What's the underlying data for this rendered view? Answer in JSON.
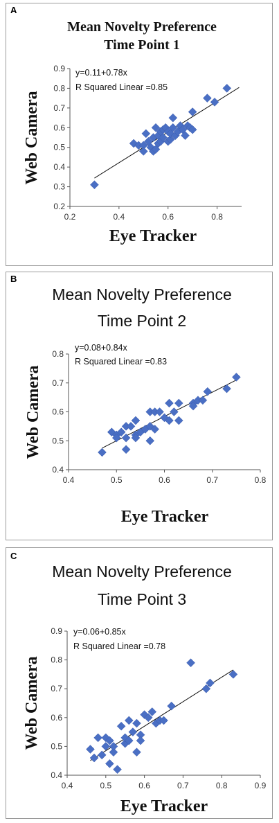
{
  "chart_data": [
    {
      "type": "scatter",
      "panel_label": "A",
      "title_lines": [
        "Mean Novelty Preference",
        "Time Point 1"
      ],
      "title_style": "serif",
      "equation": "y=0.11+0.78x",
      "r_squared": "R Squared Linear =0.85",
      "xlabel": "Eye Tracker",
      "ylabel": "Web Camera",
      "xlim": [
        0.2,
        0.9
      ],
      "ylim": [
        0.2,
        0.9
      ],
      "xticks": [
        "0.2",
        "0.4",
        "0.6",
        "0.8"
      ],
      "yticks": [
        "0.2",
        "0.3",
        "0.4",
        "0.5",
        "0.6",
        "0.7",
        "0.8",
        "0.9"
      ],
      "grid": false,
      "marker_color": "#4a6fc4",
      "fit": {
        "intercept": 0.11,
        "slope": 0.78,
        "x_range": [
          0.3,
          0.89
        ]
      },
      "points": [
        [
          0.3,
          0.31
        ],
        [
          0.46,
          0.52
        ],
        [
          0.48,
          0.51
        ],
        [
          0.5,
          0.51
        ],
        [
          0.5,
          0.48
        ],
        [
          0.51,
          0.57
        ],
        [
          0.52,
          0.53
        ],
        [
          0.53,
          0.5
        ],
        [
          0.54,
          0.48
        ],
        [
          0.54,
          0.55
        ],
        [
          0.55,
          0.6
        ],
        [
          0.55,
          0.49
        ],
        [
          0.56,
          0.52
        ],
        [
          0.56,
          0.56
        ],
        [
          0.57,
          0.58
        ],
        [
          0.57,
          0.53
        ],
        [
          0.58,
          0.59
        ],
        [
          0.58,
          0.55
        ],
        [
          0.59,
          0.6
        ],
        [
          0.6,
          0.58
        ],
        [
          0.6,
          0.53
        ],
        [
          0.61,
          0.54
        ],
        [
          0.61,
          0.57
        ],
        [
          0.62,
          0.65
        ],
        [
          0.62,
          0.6
        ],
        [
          0.63,
          0.56
        ],
        [
          0.64,
          0.58
        ],
        [
          0.65,
          0.61
        ],
        [
          0.66,
          0.59
        ],
        [
          0.67,
          0.56
        ],
        [
          0.68,
          0.61
        ],
        [
          0.69,
          0.6
        ],
        [
          0.7,
          0.68
        ],
        [
          0.7,
          0.59
        ],
        [
          0.76,
          0.75
        ],
        [
          0.79,
          0.73
        ],
        [
          0.84,
          0.8
        ]
      ]
    },
    {
      "type": "scatter",
      "panel_label": "B",
      "title_lines": [
        "Mean Novelty Preference",
        "Time Point 2"
      ],
      "title_style": "sans",
      "equation": "y=0.08+0.84x",
      "r_squared": "R Squared Linear =0.83",
      "xlabel": "Eye Tracker",
      "ylabel": "Web Camera",
      "xlim": [
        0.4,
        0.8
      ],
      "ylim": [
        0.4,
        0.8
      ],
      "xticks": [
        "0.4",
        "0.5",
        "0.6",
        "0.7",
        "0.8"
      ],
      "yticks": [
        "0.4",
        "0.5",
        "0.6",
        "0.7",
        "0.8"
      ],
      "grid": false,
      "marker_color": "#4a6fc4",
      "fit": {
        "intercept": 0.08,
        "slope": 0.84,
        "x_range": [
          0.47,
          0.75
        ]
      },
      "points": [
        [
          0.47,
          0.46
        ],
        [
          0.49,
          0.53
        ],
        [
          0.5,
          0.52
        ],
        [
          0.5,
          0.51
        ],
        [
          0.51,
          0.53
        ],
        [
          0.52,
          0.55
        ],
        [
          0.52,
          0.47
        ],
        [
          0.52,
          0.51
        ],
        [
          0.53,
          0.55
        ],
        [
          0.54,
          0.52
        ],
        [
          0.54,
          0.57
        ],
        [
          0.54,
          0.51
        ],
        [
          0.55,
          0.53
        ],
        [
          0.56,
          0.54
        ],
        [
          0.57,
          0.5
        ],
        [
          0.57,
          0.6
        ],
        [
          0.57,
          0.55
        ],
        [
          0.58,
          0.54
        ],
        [
          0.58,
          0.6
        ],
        [
          0.59,
          0.6
        ],
        [
          0.6,
          0.58
        ],
        [
          0.61,
          0.63
        ],
        [
          0.61,
          0.57
        ],
        [
          0.62,
          0.6
        ],
        [
          0.63,
          0.63
        ],
        [
          0.63,
          0.57
        ],
        [
          0.66,
          0.63
        ],
        [
          0.66,
          0.62
        ],
        [
          0.67,
          0.64
        ],
        [
          0.68,
          0.64
        ],
        [
          0.69,
          0.67
        ],
        [
          0.73,
          0.68
        ],
        [
          0.75,
          0.72
        ]
      ]
    },
    {
      "type": "scatter",
      "panel_label": "C",
      "title_lines": [
        "Mean Novelty Preference",
        "Time Point 3"
      ],
      "title_style": "sans",
      "equation": "y=0.06+0.85x",
      "r_squared": "R Squared Linear =0.78",
      "xlabel": "Eye Tracker",
      "ylabel": "Web Camera",
      "xlim": [
        0.4,
        0.9
      ],
      "ylim": [
        0.4,
        0.9
      ],
      "xticks": [
        "0.4",
        "0.5",
        "0.6",
        "0.7",
        "0.8",
        "0.9"
      ],
      "yticks": [
        "0.4",
        "0.5",
        "0.6",
        "0.7",
        "0.8",
        "0.9"
      ],
      "grid": false,
      "marker_color": "#4a6fc4",
      "fit": {
        "intercept": 0.06,
        "slope": 0.85,
        "x_range": [
          0.46,
          0.83
        ]
      },
      "points": [
        [
          0.46,
          0.49
        ],
        [
          0.47,
          0.46
        ],
        [
          0.48,
          0.53
        ],
        [
          0.49,
          0.47
        ],
        [
          0.5,
          0.5
        ],
        [
          0.5,
          0.53
        ],
        [
          0.51,
          0.44
        ],
        [
          0.51,
          0.52
        ],
        [
          0.52,
          0.48
        ],
        [
          0.52,
          0.5
        ],
        [
          0.53,
          0.42
        ],
        [
          0.54,
          0.57
        ],
        [
          0.55,
          0.51
        ],
        [
          0.55,
          0.53
        ],
        [
          0.56,
          0.59
        ],
        [
          0.56,
          0.52
        ],
        [
          0.57,
          0.55
        ],
        [
          0.58,
          0.58
        ],
        [
          0.58,
          0.48
        ],
        [
          0.59,
          0.54
        ],
        [
          0.59,
          0.52
        ],
        [
          0.6,
          0.61
        ],
        [
          0.61,
          0.6
        ],
        [
          0.62,
          0.62
        ],
        [
          0.63,
          0.58
        ],
        [
          0.64,
          0.59
        ],
        [
          0.65,
          0.59
        ],
        [
          0.67,
          0.64
        ],
        [
          0.72,
          0.79
        ],
        [
          0.76,
          0.7
        ],
        [
          0.77,
          0.72
        ],
        [
          0.83,
          0.75
        ]
      ]
    }
  ]
}
